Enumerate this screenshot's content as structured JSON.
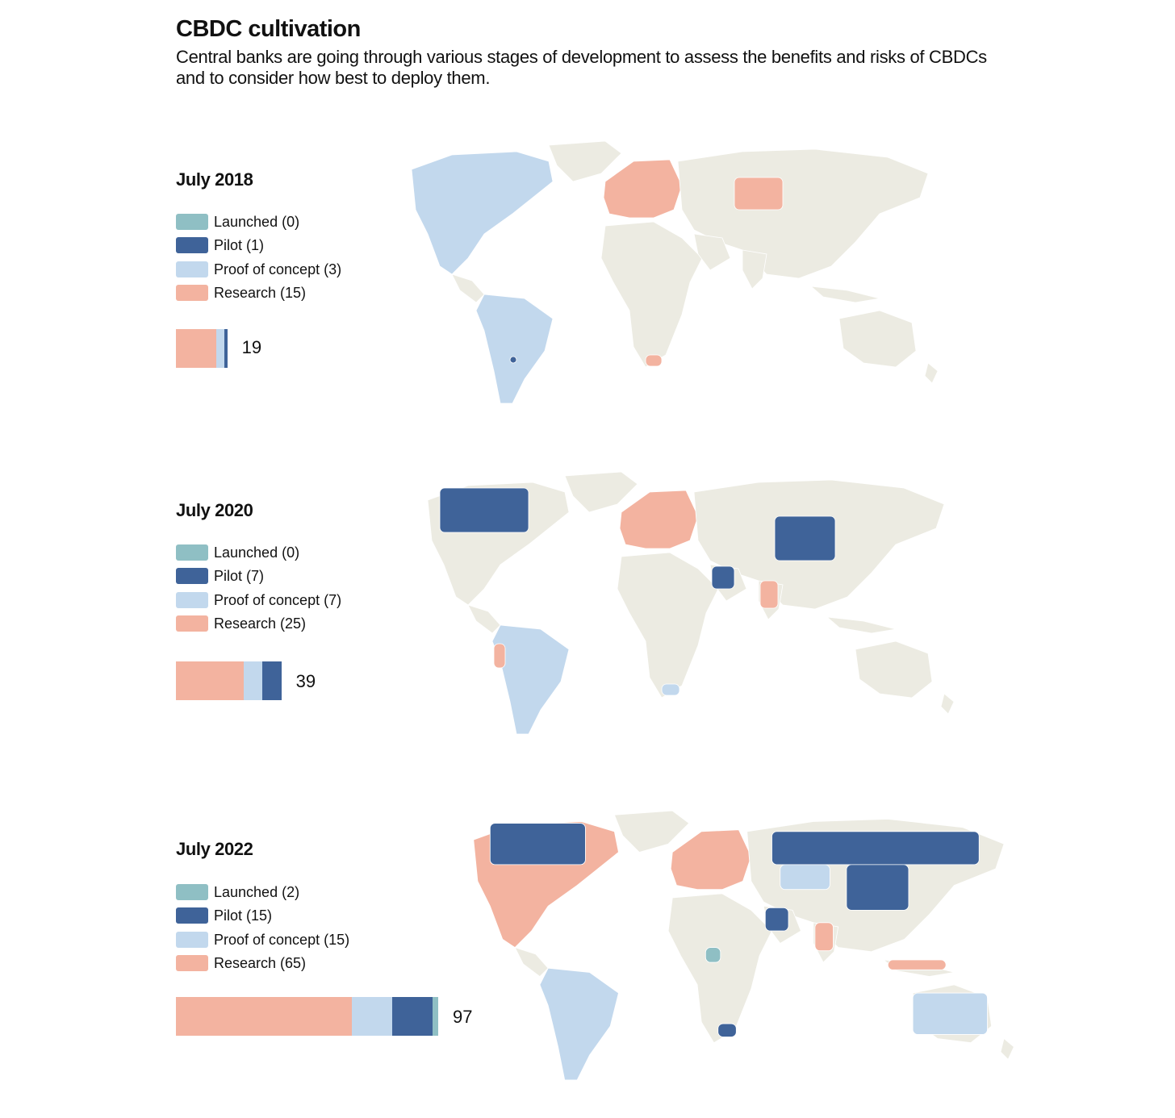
{
  "header": {
    "title": "CBDC cultivation",
    "subtitle": "Central banks are going through various stages of development to assess the benefits and risks of CBDCs and to consider how best to deploy them."
  },
  "colors": {
    "launched": "#8fbfc4",
    "pilot": "#3f6399",
    "proof": "#c2d8ed",
    "research": "#f3b3a0",
    "land": "#ecebe2"
  },
  "panels": [
    {
      "date": "July 2018",
      "legend": [
        "Launched (0)",
        "Pilot (1)",
        "Proof of concept (3)",
        "Research (15)"
      ],
      "counts": {
        "research": 15,
        "proof": 3,
        "pilot": 1,
        "launched": 0
      },
      "total": "19"
    },
    {
      "date": "July 2020",
      "legend": [
        "Launched (0)",
        "Pilot (7)",
        "Proof of concept (7)",
        "Research (25)"
      ],
      "counts": {
        "research": 25,
        "proof": 7,
        "pilot": 7,
        "launched": 0
      },
      "total": "39"
    },
    {
      "date": "July 2022",
      "legend": [
        "Launched (2)",
        "Pilot (15)",
        "Proof of concept (15)",
        "Research (65)"
      ],
      "counts": {
        "research": 65,
        "proof": 15,
        "pilot": 15,
        "launched": 2
      },
      "total": "97"
    }
  ]
}
